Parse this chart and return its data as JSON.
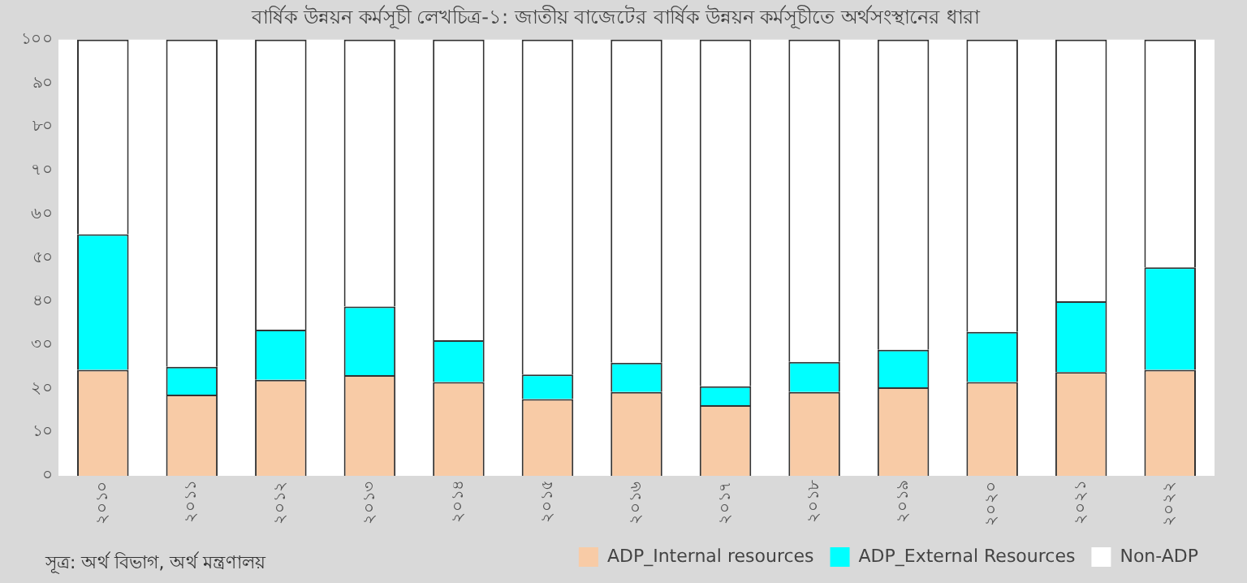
{
  "chart_data": {
    "type": "bar",
    "title": "বার্ষিক উন্নয়ন কর্মসূচী লেখচিত্র-১: জাতীয় বাজেটের বার্ষিক উন্নয়ন কর্মসূচীতে অর্থসংস্থানের ধারা",
    "categories": [
      "২০১০",
      "২০১১",
      "২০১২",
      "২০১৩",
      "২০১৪",
      "২০১৫",
      "২০১৬",
      "২০১৭",
      "২০১৮",
      "২০১৯",
      "২০২০",
      "২০২১",
      "২০২২"
    ],
    "stacked": true,
    "series": [
      {
        "name": "ADP_Internal resources",
        "color": "#f8cba6",
        "values": [
          24.3,
          18.6,
          22.0,
          23.1,
          21.5,
          17.6,
          19.2,
          16.2,
          19.2,
          20.3,
          21.5,
          23.8,
          24.3
        ]
      },
      {
        "name": "ADP_External Resources",
        "color": "#00ffff",
        "values": [
          31.1,
          6.4,
          11.5,
          15.7,
          9.6,
          5.6,
          6.7,
          4.3,
          6.9,
          8.6,
          11.5,
          16.2,
          23.5
        ]
      },
      {
        "name": "Non-ADP",
        "color": "#ffffff",
        "values": [
          44.6,
          75.0,
          66.5,
          61.2,
          68.9,
          76.8,
          74.1,
          79.5,
          73.9,
          71.1,
          67.0,
          60.0,
          52.2
        ]
      }
    ],
    "ylim": [
      0,
      100
    ],
    "yticks": [
      {
        "value": 0,
        "label": "০"
      },
      {
        "value": 10,
        "label": "১০"
      },
      {
        "value": 20,
        "label": "২০"
      },
      {
        "value": 30,
        "label": "৩০"
      },
      {
        "value": 40,
        "label": "৪০"
      },
      {
        "value": 50,
        "label": "৫০"
      },
      {
        "value": 60,
        "label": "৬০"
      },
      {
        "value": 70,
        "label": "৭০"
      },
      {
        "value": 80,
        "label": "৮০"
      },
      {
        "value": 90,
        "label": "৯০"
      },
      {
        "value": 100,
        "label": "১০০"
      }
    ],
    "grid": false,
    "legend": "bottom right",
    "annotations": [
      "সূত্র: অর্থ বিভাগ, অর্থ মন্ত্রণালয়"
    ]
  }
}
